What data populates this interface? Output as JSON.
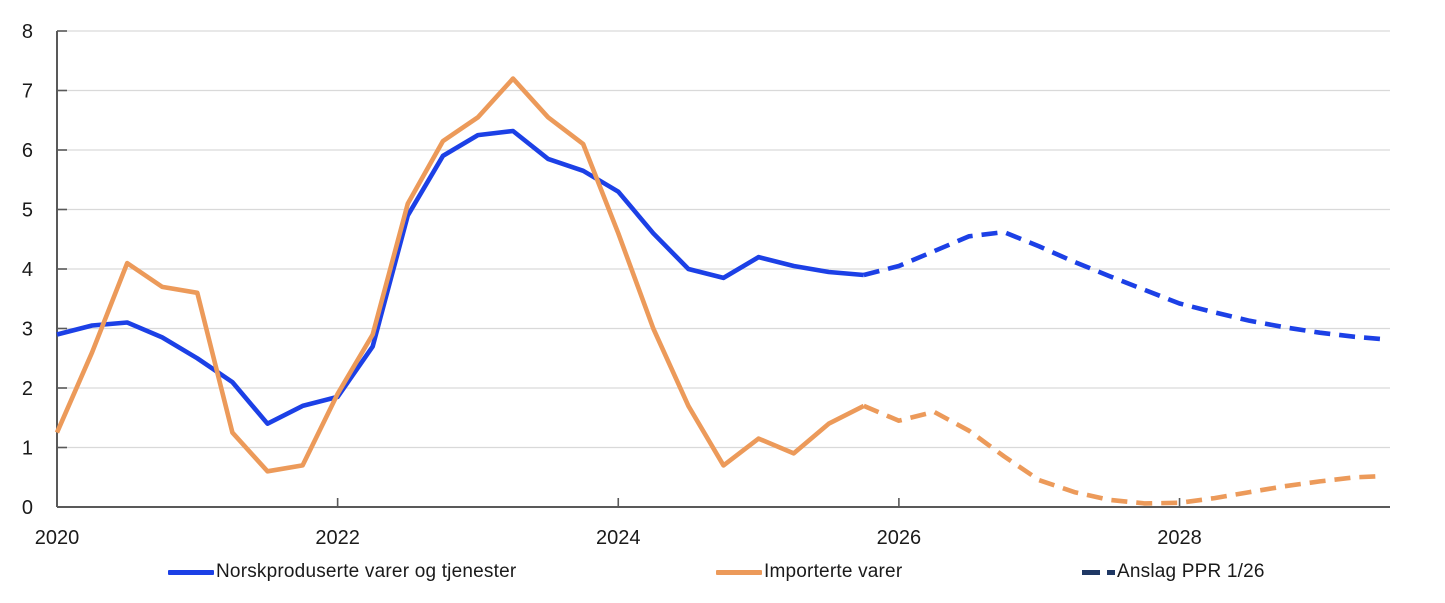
{
  "chart_data": {
    "type": "line",
    "title": "",
    "xlabel": "",
    "ylabel": "",
    "xlim": [
      2020,
      2029.5
    ],
    "ylim": [
      0,
      8
    ],
    "x_ticks": [
      2020,
      2022,
      2024,
      2026,
      2028
    ],
    "y_ticks": [
      0,
      1,
      2,
      3,
      4,
      5,
      6,
      7,
      8
    ],
    "grid": "horizontal",
    "legend_position": "bottom",
    "colors": {
      "domestic": "#1c40e6",
      "imported": "#ec9a5a",
      "forecast_legend": "#1f3864",
      "gridline": "#d9d9d9",
      "axis": "#595959",
      "text": "#1a1a1a"
    },
    "series": [
      {
        "name": "Norskproduserte varer og tjenester",
        "style": "solid",
        "color": "#1c40e6",
        "x": [
          2020.0,
          2020.25,
          2020.5,
          2020.75,
          2021.0,
          2021.25,
          2021.5,
          2021.75,
          2022.0,
          2022.25,
          2022.5,
          2022.75,
          2023.0,
          2023.25,
          2023.5,
          2023.75,
          2024.0,
          2024.25,
          2024.5,
          2024.75,
          2025.0,
          2025.25,
          2025.5,
          2025.75
        ],
        "values": [
          2.9,
          3.05,
          3.1,
          2.85,
          2.5,
          2.1,
          1.4,
          1.7,
          1.85,
          2.7,
          4.9,
          5.9,
          6.25,
          6.32,
          5.85,
          5.65,
          5.3,
          4.6,
          4.0,
          3.85,
          4.2,
          4.05,
          3.95,
          3.9
        ]
      },
      {
        "name": "Norskproduserte varer og tjenester — anslag PPR 1/26",
        "style": "dashed",
        "color": "#1c40e6",
        "x": [
          2025.75,
          2026.0,
          2026.25,
          2026.5,
          2026.75,
          2027.0,
          2027.25,
          2027.5,
          2027.75,
          2028.0,
          2028.25,
          2028.5,
          2028.75,
          2029.0,
          2029.25,
          2029.45
        ],
        "values": [
          3.9,
          4.05,
          4.3,
          4.55,
          4.62,
          4.38,
          4.12,
          3.88,
          3.65,
          3.42,
          3.27,
          3.13,
          3.02,
          2.93,
          2.86,
          2.82
        ]
      },
      {
        "name": "Importerte varer",
        "style": "solid",
        "color": "#ec9a5a",
        "x": [
          2020.0,
          2020.25,
          2020.5,
          2020.75,
          2021.0,
          2021.25,
          2021.5,
          2021.75,
          2022.0,
          2022.25,
          2022.5,
          2022.75,
          2023.0,
          2023.25,
          2023.5,
          2023.75,
          2024.0,
          2024.25,
          2024.5,
          2024.75,
          2025.0,
          2025.25,
          2025.5,
          2025.75
        ],
        "values": [
          1.25,
          2.6,
          4.1,
          3.7,
          3.6,
          1.25,
          0.6,
          0.7,
          1.9,
          2.9,
          5.1,
          6.15,
          6.55,
          7.2,
          6.55,
          6.1,
          4.6,
          3.0,
          1.7,
          0.7,
          1.15,
          0.9,
          1.4,
          1.7
        ]
      },
      {
        "name": "Importerte varer — anslag PPR 1/26",
        "style": "dashed",
        "color": "#ec9a5a",
        "x": [
          2025.75,
          2026.0,
          2026.25,
          2026.5,
          2026.75,
          2027.0,
          2027.25,
          2027.5,
          2027.75,
          2028.0,
          2028.25,
          2028.5,
          2028.75,
          2029.0,
          2029.25,
          2029.45
        ],
        "values": [
          1.7,
          1.45,
          1.6,
          1.28,
          0.85,
          0.45,
          0.25,
          0.12,
          0.06,
          0.07,
          0.15,
          0.25,
          0.35,
          0.43,
          0.5,
          0.52
        ]
      }
    ],
    "legend": [
      {
        "label": "Norskproduserte varer og tjenester",
        "color": "#1c40e6",
        "style": "solid"
      },
      {
        "label": "Importerte varer",
        "color": "#ec9a5a",
        "style": "solid"
      },
      {
        "label": "Anslag PPR 1/26",
        "color": "#1f3864",
        "style": "dashed"
      }
    ]
  }
}
